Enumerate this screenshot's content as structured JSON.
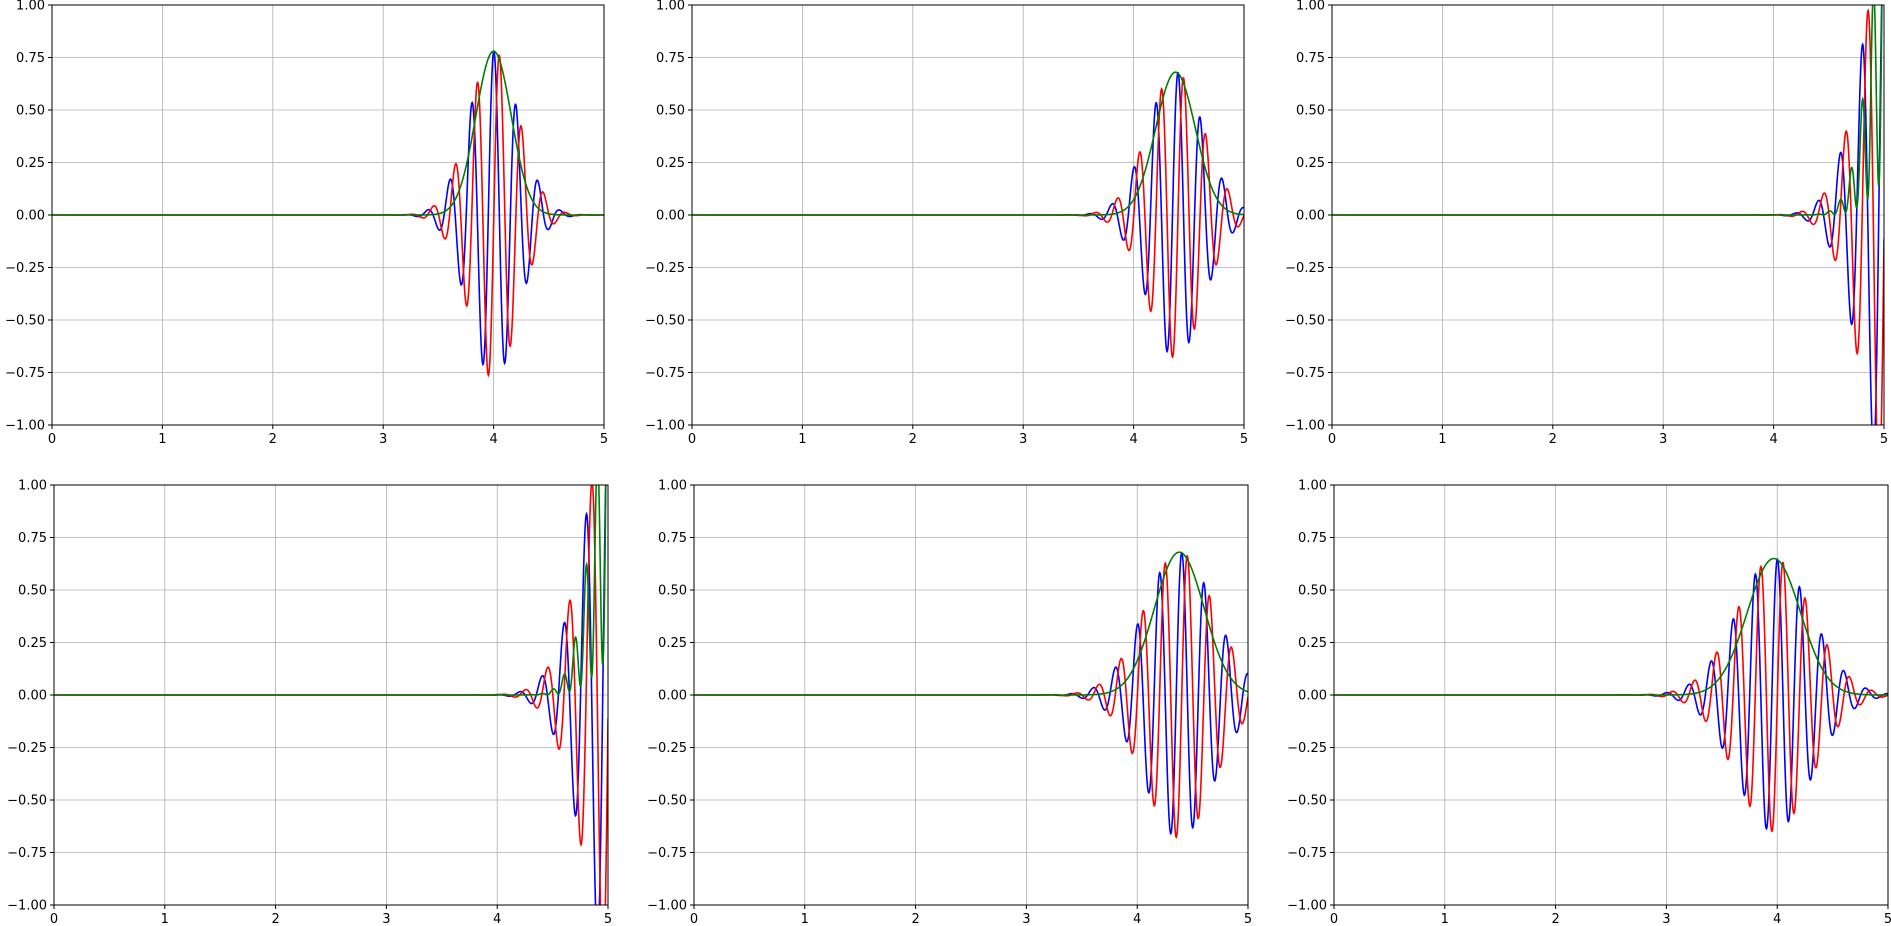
{
  "chart_data": [
    {
      "type": "line",
      "xlim": [
        0,
        5
      ],
      "ylim": [
        -1.0,
        1.0
      ],
      "xticks": [
        "0",
        "1",
        "2",
        "3",
        "4",
        "5"
      ],
      "yticks": [
        "−1.00",
        "−0.75",
        "−0.50",
        "−0.25",
        "0.00",
        "0.25",
        "0.50",
        "0.75",
        "1.00"
      ],
      "grid": true,
      "wave": {
        "center": 4.0,
        "width": 0.32,
        "amplitude": 0.78,
        "wavenumber": 31.4
      },
      "series": [
        {
          "color": "#0000ff",
          "kind": "real"
        },
        {
          "color": "#ff0000",
          "kind": "imag"
        },
        {
          "color": "#008000",
          "kind": "envelope"
        }
      ]
    },
    {
      "type": "line",
      "xlim": [
        0,
        5
      ],
      "ylim": [
        -1.0,
        1.0
      ],
      "xticks": [
        "0",
        "1",
        "2",
        "3",
        "4",
        "5"
      ],
      "yticks": [
        "−1.00",
        "−0.75",
        "−0.50",
        "−0.25",
        "0.00",
        "0.25",
        "0.50",
        "0.75",
        "1.00"
      ],
      "grid": true,
      "wave": {
        "center": 4.38,
        "width": 0.36,
        "amplitude": 0.68,
        "wavenumber": 31.4
      },
      "series": [
        {
          "color": "#0000ff",
          "kind": "real"
        },
        {
          "color": "#ff0000",
          "kind": "imag"
        },
        {
          "color": "#008000",
          "kind": "envelope"
        }
      ]
    },
    {
      "type": "line",
      "xlim": [
        0,
        5
      ],
      "ylim": [
        -1.0,
        1.0
      ],
      "xticks": [
        "0",
        "1",
        "2",
        "3",
        "4",
        "5"
      ],
      "yticks": [
        "−1.00",
        "−0.75",
        "−0.50",
        "−0.25",
        "0.00",
        "0.25",
        "0.50",
        "0.75",
        "1.00"
      ],
      "grid": true,
      "wave": {
        "center": 5.15,
        "width": 0.42,
        "amplitude": 1.6,
        "wavenumber": 31.4,
        "boundary_growth": true
      },
      "series": [
        {
          "color": "#0000ff",
          "kind": "real"
        },
        {
          "color": "#ff0000",
          "kind": "imag"
        },
        {
          "color": "#008000",
          "kind": "envelope"
        }
      ]
    },
    {
      "type": "line",
      "xlim": [
        0,
        5
      ],
      "ylim": [
        -1.0,
        1.0
      ],
      "xticks": [
        "0",
        "1",
        "2",
        "3",
        "4",
        "5"
      ],
      "yticks": [
        "−1.00",
        "−0.75",
        "−0.50",
        "−0.25",
        "0.00",
        "0.25",
        "0.50",
        "0.75",
        "1.00"
      ],
      "grid": true,
      "wave": {
        "center": 5.15,
        "width": 0.44,
        "amplitude": 1.6,
        "wavenumber": 31.4,
        "boundary_growth": true
      },
      "series": [
        {
          "color": "#0000ff",
          "kind": "real"
        },
        {
          "color": "#ff0000",
          "kind": "imag"
        },
        {
          "color": "#008000",
          "kind": "envelope"
        }
      ]
    },
    {
      "type": "line",
      "xlim": [
        0,
        5
      ],
      "ylim": [
        -1.0,
        1.0
      ],
      "xticks": [
        "0",
        "1",
        "2",
        "3",
        "4",
        "5"
      ],
      "yticks": [
        "−1.00",
        "−0.75",
        "−0.50",
        "−0.25",
        "0.00",
        "0.25",
        "0.50",
        "0.75",
        "1.00"
      ],
      "grid": true,
      "wave": {
        "center": 4.38,
        "width": 0.45,
        "amplitude": 0.68,
        "wavenumber": 31.4
      },
      "series": [
        {
          "color": "#0000ff",
          "kind": "real"
        },
        {
          "color": "#ff0000",
          "kind": "imag"
        },
        {
          "color": "#008000",
          "kind": "envelope"
        }
      ]
    },
    {
      "type": "line",
      "xlim": [
        0,
        5
      ],
      "ylim": [
        -1.0,
        1.0
      ],
      "xticks": [
        "0",
        "1",
        "2",
        "3",
        "4",
        "5"
      ],
      "yticks": [
        "−1.00",
        "−0.75",
        "−0.50",
        "−0.25",
        "0.00",
        "0.25",
        "0.50",
        "0.75",
        "1.00"
      ],
      "grid": true,
      "wave": {
        "center": 3.97,
        "width": 0.48,
        "amplitude": 0.65,
        "wavenumber": 31.4
      },
      "series": [
        {
          "color": "#0000ff",
          "kind": "real"
        },
        {
          "color": "#ff0000",
          "kind": "imag"
        },
        {
          "color": "#008000",
          "kind": "envelope"
        }
      ]
    }
  ]
}
